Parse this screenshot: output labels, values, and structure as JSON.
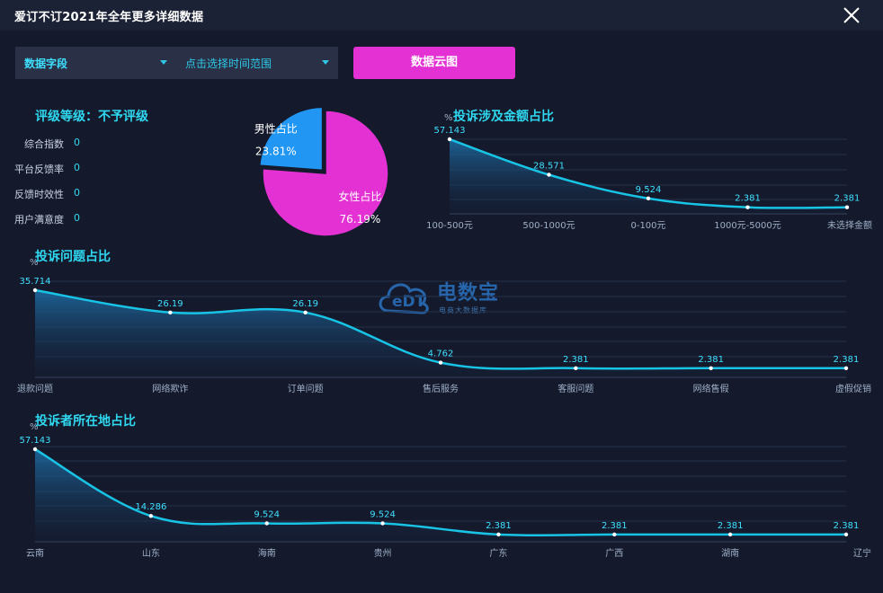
{
  "window": {
    "title": "爱订不订2021年全年更多详细数据",
    "close_icon": "close-icon"
  },
  "toolbar": {
    "field_select": "数据字段",
    "time_select": "点击选择时间范围",
    "cloud_button": "数据云图"
  },
  "rating": {
    "title": "评级等级：不予评级",
    "rows": [
      {
        "label": "综合指数",
        "value": "0"
      },
      {
        "label": "平台反馈率",
        "value": "0"
      },
      {
        "label": "反馈时效性",
        "value": "0"
      },
      {
        "label": "用户满意度",
        "value": "0"
      }
    ]
  },
  "watermark": {
    "logo_text": "eDT",
    "name": "电数宝",
    "tagline": "电商大数据库"
  },
  "colors": {
    "accent": "#2fd8f0",
    "pink": "#e331d3",
    "blue": "#2196f3",
    "line": "#18c4e6"
  },
  "chart_data": [
    {
      "type": "pie",
      "slices": [
        {
          "label": "男性占比",
          "value": 23.81,
          "display": "23.81%",
          "color": "#2196f3"
        },
        {
          "label": "女性占比",
          "value": 76.19,
          "display": "76.19%",
          "color": "#e331d3"
        }
      ]
    },
    {
      "type": "area",
      "title": "投诉涉及金额占比",
      "ylabel": "%",
      "categories": [
        "100-500元",
        "500-1000元",
        "0-100元",
        "1000元-5000元",
        "未选择金额"
      ],
      "values": [
        57.143,
        28.571,
        9.524,
        2.381,
        2.381
      ],
      "labels": [
        "57.143",
        "28.571",
        "9.524",
        "2.381",
        "2.381"
      ]
    },
    {
      "type": "area",
      "title": "投诉问题占比",
      "ylabel": "%",
      "categories": [
        "退款问题",
        "网络欺诈",
        "订单问题",
        "售后服务",
        "客服问题",
        "网络售假",
        "虚假促销"
      ],
      "values": [
        35.714,
        26.19,
        26.19,
        4.762,
        2.381,
        2.381,
        2.381
      ],
      "labels": [
        "35.714",
        "26.19",
        "26.19",
        "4.762",
        "2.381",
        "2.381",
        "2.381"
      ]
    },
    {
      "type": "area",
      "title": "投诉者所在地占比",
      "ylabel": "%",
      "categories": [
        "云南",
        "山东",
        "海南",
        "贵州",
        "广东",
        "广西",
        "湖南",
        "辽宁"
      ],
      "values": [
        57.143,
        14.286,
        9.524,
        9.524,
        2.381,
        2.381,
        2.381,
        2.381
      ],
      "labels": [
        "57.143",
        "14.286",
        "9.524",
        "9.524",
        "2.381",
        "2.381",
        "2.381",
        "2.381"
      ]
    }
  ]
}
